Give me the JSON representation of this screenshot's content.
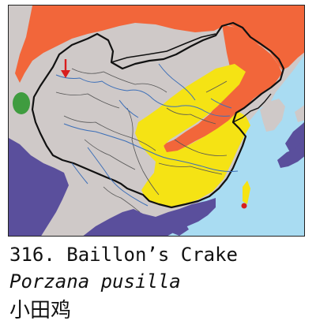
{
  "caption": {
    "line1": "316. Baillon’s Crake",
    "line2": "Porzana pusilla",
    "line3": "小田鸡"
  },
  "colors": {
    "ocean": "#a9dcf2",
    "land": "#cfc9c8",
    "breeding": "#f2663a",
    "resident": "#f5e314",
    "wintering": "#5a4f9c",
    "passage": "#3f9c3f",
    "vagrant_marker": "#d81e1e",
    "record_arrow": "#d81e1e"
  },
  "legend_icons": [
    "range-map",
    "arrow-record-icon",
    "dot-record-icon"
  ]
}
